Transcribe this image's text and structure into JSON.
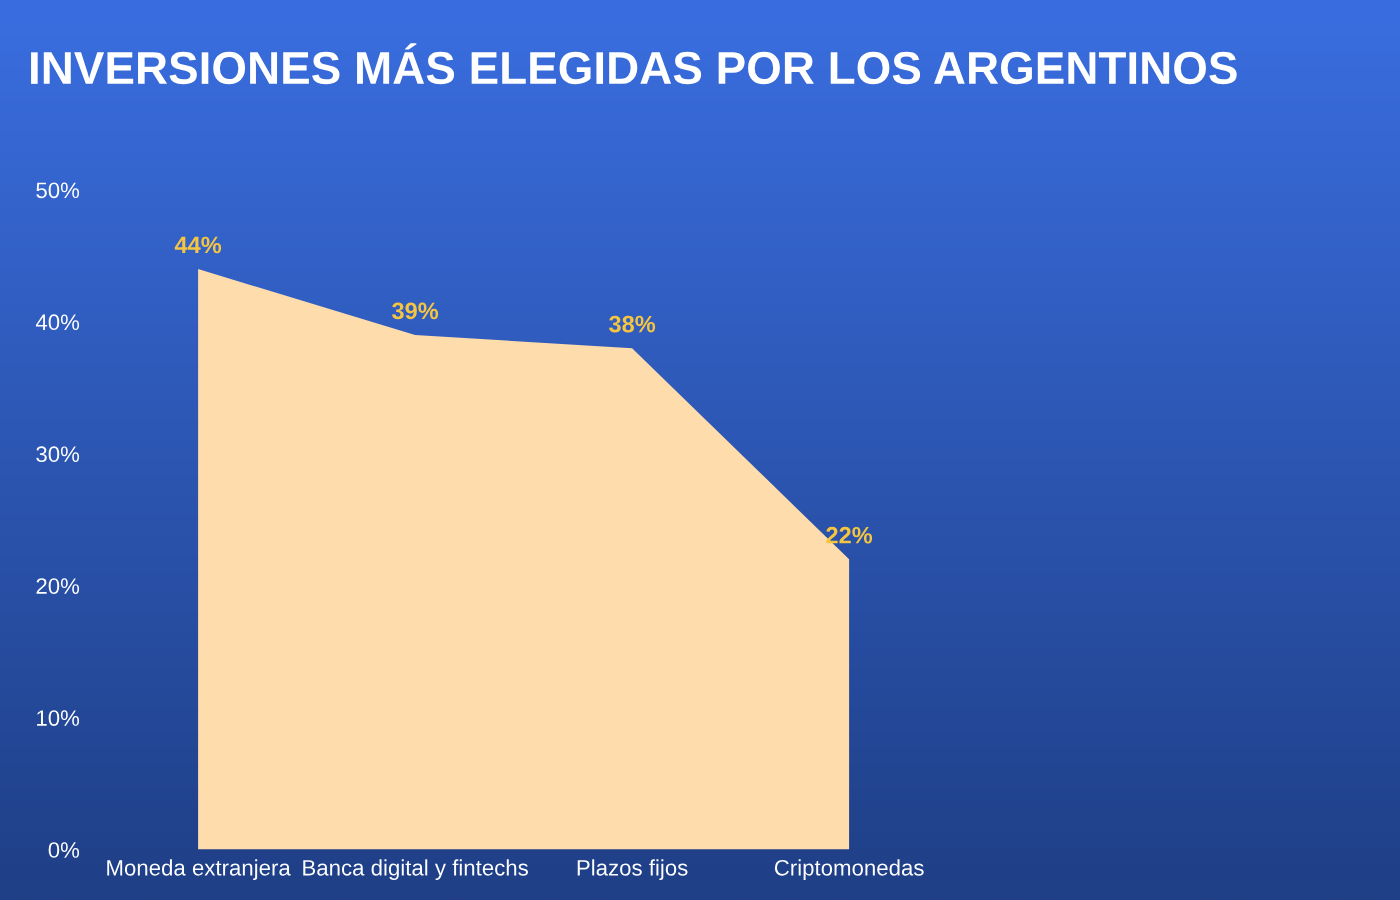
{
  "chart_data": {
    "type": "area",
    "title": "INVERSIONES MÁS ELEGIDAS POR LOS ARGENTINOS",
    "categories": [
      "Moneda extranjera",
      "Banca digital y fintechs",
      "Plazos fijos",
      "Criptomonedas"
    ],
    "values": [
      44,
      39,
      38,
      22
    ],
    "color": "#fedcac",
    "value_labels": [
      "44%",
      "39%",
      "38%",
      "22%"
    ],
    "ylim": [
      0,
      50
    ],
    "yticks": [
      {
        "value": 0,
        "label": "0%"
      },
      {
        "value": 10,
        "label": "10%"
      },
      {
        "value": 20,
        "label": "20%"
      },
      {
        "value": 30,
        "label": "30%"
      },
      {
        "value": 40,
        "label": "40%"
      },
      {
        "value": 50,
        "label": "50%"
      }
    ],
    "grid": false,
    "legend": false
  }
}
